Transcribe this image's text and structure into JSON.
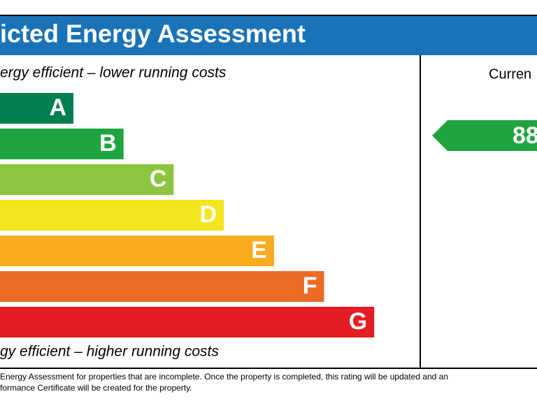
{
  "header": {
    "title": "icted Energy Assessment"
  },
  "top_note": "ergy efficient – lower running costs",
  "bottom_note": "gy efficient – higher running costs",
  "bands": [
    {
      "letter": "A",
      "color": "#00804f"
    },
    {
      "letter": "B",
      "color": "#1fa53f"
    },
    {
      "letter": "C",
      "color": "#8cc63e"
    },
    {
      "letter": "D",
      "color": "#f4e51f"
    },
    {
      "letter": "E",
      "color": "#f7ab1d"
    },
    {
      "letter": "F",
      "color": "#ec6b24"
    },
    {
      "letter": "G",
      "color": "#e31d23"
    }
  ],
  "current": {
    "label": "Curren",
    "rating": 88,
    "color": "#1fa53f"
  },
  "footer": [
    "Energy Assessment for properties that are incomplete. Once the property is completed, this rating will be updated and an",
    "formance Certificate will be created for the property."
  ]
}
